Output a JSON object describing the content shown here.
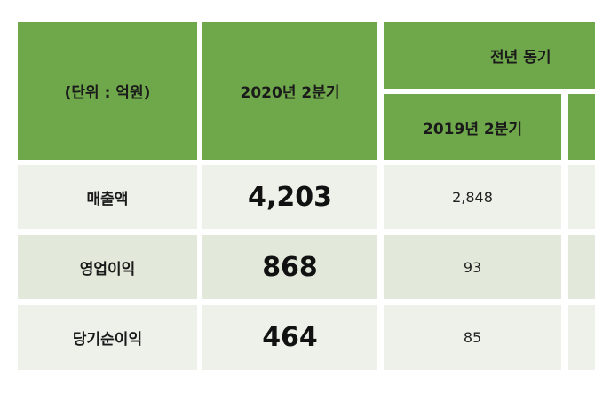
{
  "header": {
    "unit": "(단위 : 억원)",
    "current": "2020년 2분기",
    "compare": "전년 동기",
    "previous": "2019년 2분기"
  },
  "rows": [
    {
      "label": "매출액",
      "current": "4,203",
      "previous": "2,848"
    },
    {
      "label": "영업이익",
      "current": "868",
      "previous": "93"
    },
    {
      "label": "당기순이익",
      "current": "464",
      "previous": "85"
    }
  ]
}
